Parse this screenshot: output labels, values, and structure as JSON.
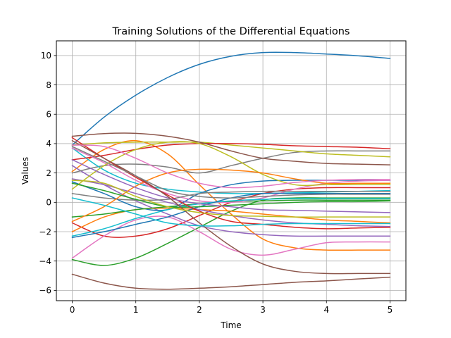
{
  "chart_data": {
    "type": "line",
    "title": "Training Solutions of the Differential Equations",
    "xlabel": "Time",
    "ylabel": "Values",
    "xlim": [
      -0.25,
      5.25
    ],
    "ylim": [
      -6.7,
      11.0
    ],
    "xticks": [
      0,
      1,
      2,
      3,
      4,
      5
    ],
    "yticks": [
      -6,
      -4,
      -2,
      0,
      2,
      4,
      6,
      8,
      10
    ],
    "grid": true,
    "x": [
      0,
      0.5,
      1,
      1.5,
      2,
      2.5,
      3,
      3.5,
      4,
      4.5,
      5
    ],
    "series": [
      {
        "color": "#1f77b4",
        "values": [
          3.9,
          5.8,
          7.3,
          8.5,
          9.4,
          9.95,
          10.2,
          10.2,
          10.1,
          9.98,
          9.8
        ]
      },
      {
        "color": "#ff7f0e",
        "values": [
          2.1,
          3.6,
          4.2,
          3.3,
          1.2,
          -0.8,
          -2.5,
          -3.1,
          -3.25,
          -3.25,
          -3.25
        ]
      },
      {
        "color": "#2ca02c",
        "values": [
          -3.9,
          -4.3,
          -3.8,
          -2.8,
          -1.7,
          -0.6,
          0.15,
          0.3,
          0.3,
          0.3,
          0.3
        ]
      },
      {
        "color": "#d62728",
        "values": [
          -1.4,
          -2.3,
          -2.3,
          -1.8,
          -0.9,
          0.0,
          0.6,
          0.9,
          1.0,
          1.0,
          1.0
        ]
      },
      {
        "color": "#9467bd",
        "values": [
          2.5,
          1.2,
          0.1,
          -0.8,
          -1.6,
          -2.0,
          -2.2,
          -2.3,
          -2.3,
          -2.3,
          -2.3
        ]
      },
      {
        "color": "#8c564b",
        "values": [
          -4.9,
          -5.5,
          -5.85,
          -5.92,
          -5.85,
          -5.75,
          -5.6,
          -5.45,
          -5.35,
          -5.22,
          -5.1
        ]
      },
      {
        "color": "#e377c2",
        "values": [
          -3.8,
          -2.3,
          -1.2,
          -1.0,
          -2.0,
          -3.2,
          -3.6,
          -3.2,
          -2.75,
          -2.7,
          -2.7
        ]
      },
      {
        "color": "#7f7f7f",
        "values": [
          2.0,
          2.5,
          2.6,
          2.4,
          2.0,
          2.5,
          3.0,
          3.4,
          3.5,
          3.5,
          3.5
        ]
      },
      {
        "color": "#bcbd22",
        "values": [
          3.9,
          4.05,
          4.1,
          4.1,
          4.1,
          3.9,
          3.7,
          3.5,
          3.3,
          3.2,
          3.1
        ]
      },
      {
        "color": "#17becf",
        "values": [
          3.7,
          2.2,
          1.3,
          0.9,
          0.7,
          0.6,
          0.6,
          0.65,
          0.7,
          0.75,
          0.8
        ]
      },
      {
        "color": "#1f77b4",
        "values": [
          1.4,
          0.6,
          -0.3,
          -0.5,
          0.6,
          1.2,
          1.45,
          1.5,
          1.5,
          1.5,
          1.5
        ]
      },
      {
        "color": "#ff7f0e",
        "values": [
          -2.0,
          -1.0,
          -0.5,
          -0.4,
          -0.5,
          -0.6,
          -0.8,
          -1.0,
          -1.2,
          -1.3,
          -1.4
        ]
      },
      {
        "color": "#2ca02c",
        "values": [
          -1.0,
          -0.8,
          -0.5,
          -0.3,
          -0.1,
          0.05,
          0.1,
          0.15,
          0.15,
          0.15,
          0.15
        ]
      },
      {
        "color": "#d62728",
        "values": [
          2.9,
          3.2,
          3.6,
          3.9,
          4.0,
          4.0,
          3.95,
          3.85,
          3.8,
          3.75,
          3.65
        ]
      },
      {
        "color": "#9467bd",
        "values": [
          1.6,
          1.2,
          0.6,
          0.0,
          -0.5,
          -0.9,
          -1.2,
          -1.4,
          -1.5,
          -1.6,
          -1.65
        ]
      },
      {
        "color": "#8c564b",
        "values": [
          4.5,
          4.68,
          4.7,
          4.5,
          4.1,
          3.5,
          3.0,
          2.8,
          2.65,
          2.6,
          2.55
        ]
      },
      {
        "color": "#e377c2",
        "values": [
          3.7,
          2.7,
          1.5,
          0.6,
          0.1,
          0.0,
          0.3,
          0.9,
          1.3,
          1.45,
          1.5
        ]
      },
      {
        "color": "#7f7f7f",
        "values": [
          0.6,
          0.3,
          0.15,
          0.2,
          0.6,
          0.7,
          0.75,
          0.75,
          0.75,
          0.75,
          0.75
        ]
      },
      {
        "color": "#bcbd22",
        "values": [
          0.9,
          2.5,
          3.6,
          4.1,
          4.0,
          3.1,
          1.9,
          1.2,
          1.2,
          1.2,
          1.2
        ]
      },
      {
        "color": "#17becf",
        "values": [
          -2.3,
          -1.8,
          -1.1,
          -0.5,
          -0.1,
          0.1,
          0.2,
          0.25,
          0.25,
          0.25,
          0.25
        ]
      },
      {
        "color": "#1f77b4",
        "values": [
          -2.4,
          -2.0,
          -1.5,
          -1.0,
          -0.3,
          0.3,
          0.6,
          0.6,
          0.6,
          0.6,
          0.6
        ]
      },
      {
        "color": "#ff7f0e",
        "values": [
          -1.3,
          -0.3,
          1.1,
          2.0,
          2.25,
          2.2,
          2.0,
          1.6,
          1.3,
          1.3,
          1.3
        ]
      },
      {
        "color": "#2ca02c",
        "values": [
          1.3,
          0.8,
          0.2,
          -0.3,
          -0.3,
          -0.2,
          -0.1,
          0.0,
          0.05,
          0.05,
          0.1
        ]
      },
      {
        "color": "#d62728",
        "values": [
          4.4,
          3.0,
          1.7,
          0.5,
          -0.6,
          -1.3,
          -1.5,
          -1.7,
          -1.8,
          -1.75,
          -1.7
        ]
      },
      {
        "color": "#9467bd",
        "values": [
          2.9,
          1.9,
          1.0,
          0.3,
          -0.1,
          -0.3,
          -0.5,
          -0.55,
          -0.6,
          -0.65,
          -0.7
        ]
      },
      {
        "color": "#8c564b",
        "values": [
          4.2,
          3.0,
          1.8,
          0.4,
          -1.4,
          -3.0,
          -4.2,
          -4.7,
          -4.85,
          -4.85,
          -4.85
        ]
      },
      {
        "color": "#e377c2",
        "values": [
          3.9,
          3.8,
          3.0,
          2.0,
          1.3,
          1.0,
          1.1,
          1.35,
          1.5,
          1.55,
          1.55
        ]
      },
      {
        "color": "#7f7f7f",
        "values": [
          3.8,
          2.8,
          1.8,
          0.8,
          0.4,
          0.3,
          0.4,
          0.5,
          0.55,
          0.55,
          0.55
        ]
      },
      {
        "color": "#bcbd22",
        "values": [
          1.5,
          1.3,
          0.4,
          -0.3,
          -0.7,
          -0.9,
          -0.95,
          -1.0,
          -1.0,
          -1.0,
          -1.0
        ]
      },
      {
        "color": "#17becf",
        "values": [
          0.3,
          -0.2,
          -0.8,
          -1.4,
          -1.6,
          -1.6,
          -1.5,
          -1.45,
          -1.45,
          -1.45,
          -1.45
        ]
      }
    ]
  }
}
